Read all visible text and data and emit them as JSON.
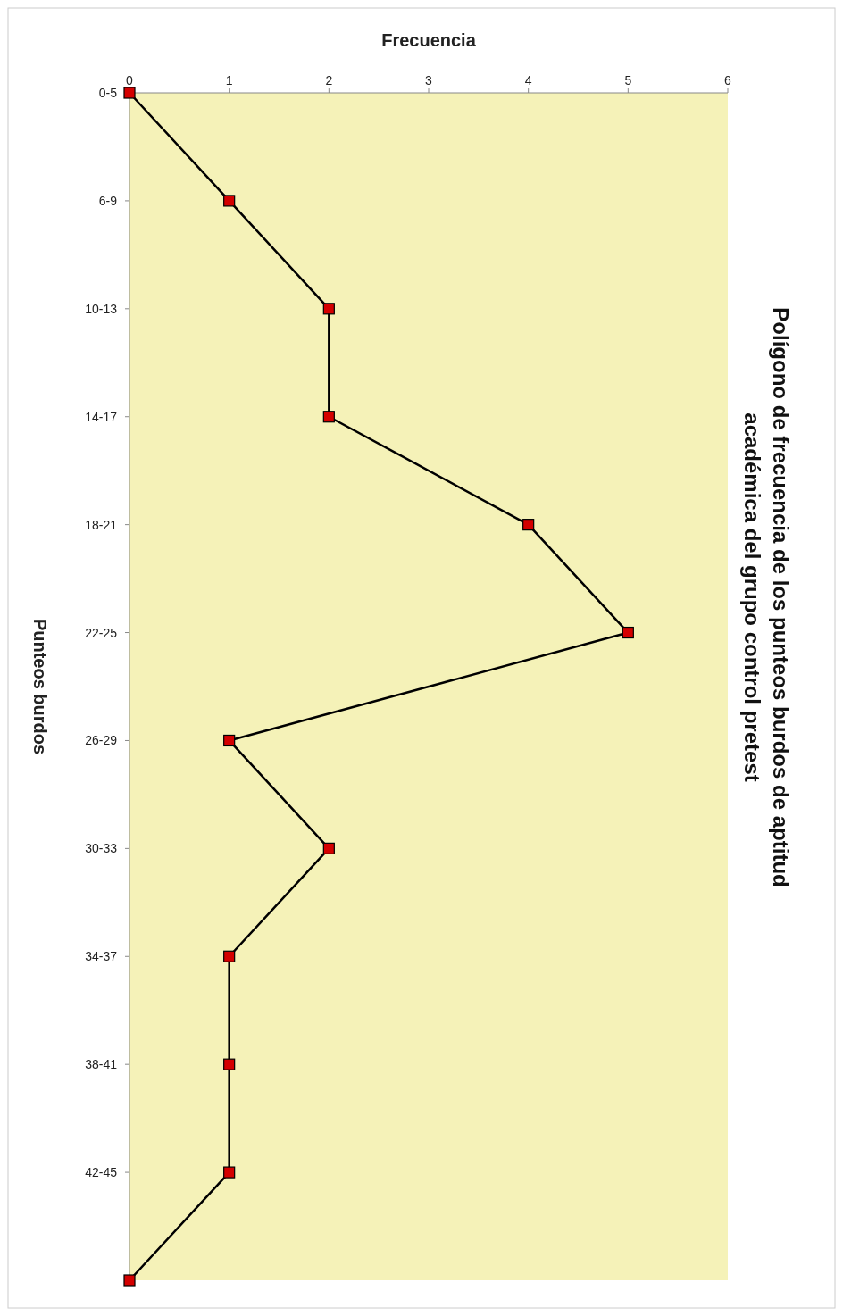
{
  "chart_data": {
    "type": "line",
    "orientation": "horizontal",
    "title": "Polígono de frecuencia de los punteos burdos de aptitud académica del grupo control pretest",
    "xlabel": "Frecuencia",
    "ylabel": "Punteos burdos",
    "categories": [
      "0-5",
      "6-9",
      "10-13",
      "14-17",
      "18-21",
      "22-25",
      "26-29",
      "30-33",
      "34-37",
      "38-41",
      "42-45",
      null
    ],
    "series": [
      {
        "color": "#000000",
        "values": [
          0,
          1,
          2,
          2,
          4,
          5,
          1,
          2,
          1,
          1,
          1,
          0
        ]
      }
    ],
    "xlim": [
      0,
      6
    ],
    "xticks": [
      0,
      1,
      2,
      3,
      4,
      5,
      6
    ],
    "marker": "square",
    "line_style": "solid"
  }
}
